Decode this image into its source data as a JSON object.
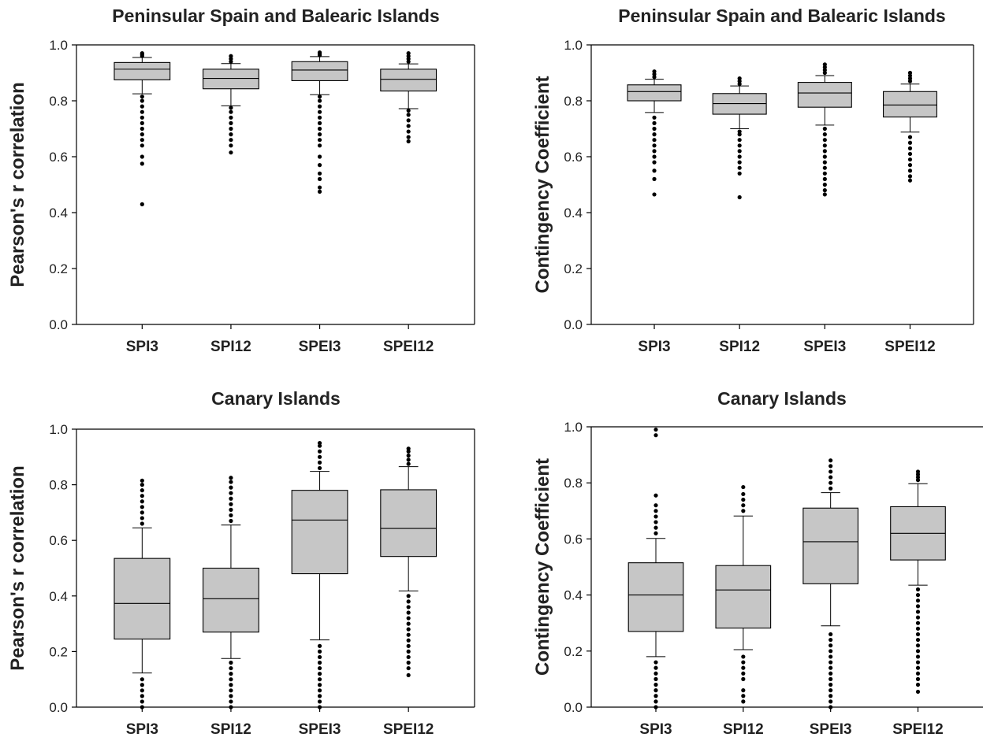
{
  "chart_data": [
    {
      "type": "box",
      "title": "Peninsular Spain and Balearic Islands",
      "ylabel": "Pearson's r correlation",
      "ylim": [
        0,
        1
      ],
      "yticks": [
        "0.0",
        "0.2",
        "0.4",
        "0.6",
        "0.8",
        "1.0"
      ],
      "categories": [
        "SPI3",
        "SPI12",
        "SPEI3",
        "SPEI12"
      ],
      "boxes": [
        {
          "whisker_low": 0.825,
          "q1": 0.875,
          "median": 0.913,
          "q3": 0.937,
          "whisker_high": 0.955,
          "outliers_low": [
            0.43,
            0.575,
            0.6,
            0.64,
            0.66,
            0.68,
            0.7,
            0.72,
            0.74,
            0.76,
            0.78,
            0.8,
            0.815
          ],
          "outliers_high": [
            0.96,
            0.965,
            0.97
          ]
        },
        {
          "whisker_low": 0.782,
          "q1": 0.843,
          "median": 0.88,
          "q3": 0.913,
          "whisker_high": 0.933,
          "outliers_low": [
            0.615,
            0.64,
            0.66,
            0.68,
            0.7,
            0.72,
            0.74,
            0.76,
            0.775
          ],
          "outliers_high": [
            0.94,
            0.95,
            0.96
          ]
        },
        {
          "whisker_low": 0.822,
          "q1": 0.872,
          "median": 0.91,
          "q3": 0.94,
          "whisker_high": 0.958,
          "outliers_low": [
            0.475,
            0.49,
            0.52,
            0.54,
            0.57,
            0.6,
            0.64,
            0.66,
            0.68,
            0.7,
            0.72,
            0.74,
            0.76,
            0.78,
            0.8,
            0.815
          ],
          "outliers_high": [
            0.963,
            0.968,
            0.973
          ]
        },
        {
          "whisker_low": 0.772,
          "q1": 0.835,
          "median": 0.877,
          "q3": 0.913,
          "whisker_high": 0.932,
          "outliers_low": [
            0.655,
            0.67,
            0.69,
            0.71,
            0.73,
            0.75,
            0.765
          ],
          "outliers_high": [
            0.94,
            0.95,
            0.96,
            0.97
          ]
        }
      ]
    },
    {
      "type": "box",
      "title": "Peninsular Spain and Balearic Islands",
      "ylabel": "Contingency Coefficient",
      "ylim": [
        0,
        1
      ],
      "yticks": [
        "0.0",
        "0.2",
        "0.4",
        "0.6",
        "0.8",
        "1.0"
      ],
      "categories": [
        "SPI3",
        "SPI12",
        "SPEI3",
        "SPEI12"
      ],
      "boxes": [
        {
          "whisker_low": 0.758,
          "q1": 0.8,
          "median": 0.833,
          "q3": 0.857,
          "whisker_high": 0.877,
          "outliers_low": [
            0.465,
            0.52,
            0.55,
            0.58,
            0.6,
            0.62,
            0.64,
            0.66,
            0.68,
            0.7,
            0.72,
            0.74
          ],
          "outliers_high": [
            0.885,
            0.895,
            0.905
          ]
        },
        {
          "whisker_low": 0.7,
          "q1": 0.752,
          "median": 0.79,
          "q3": 0.826,
          "whisker_high": 0.853,
          "outliers_low": [
            0.455,
            0.54,
            0.56,
            0.58,
            0.6,
            0.62,
            0.64,
            0.66,
            0.68,
            0.69
          ],
          "outliers_high": [
            0.86,
            0.87,
            0.88
          ]
        },
        {
          "whisker_low": 0.713,
          "q1": 0.777,
          "median": 0.828,
          "q3": 0.866,
          "whisker_high": 0.89,
          "outliers_low": [
            0.465,
            0.48,
            0.5,
            0.52,
            0.54,
            0.56,
            0.58,
            0.6,
            0.62,
            0.64,
            0.66,
            0.68,
            0.7
          ],
          "outliers_high": [
            0.9,
            0.91,
            0.92,
            0.93
          ]
        },
        {
          "whisker_low": 0.688,
          "q1": 0.742,
          "median": 0.785,
          "q3": 0.833,
          "whisker_high": 0.86,
          "outliers_low": [
            0.515,
            0.53,
            0.55,
            0.57,
            0.59,
            0.61,
            0.63,
            0.65,
            0.67
          ],
          "outliers_high": [
            0.87,
            0.88,
            0.89,
            0.9
          ]
        }
      ]
    },
    {
      "type": "box",
      "title": "Canary Islands",
      "ylabel": "Pearson's r correlation",
      "ylim": [
        0,
        1
      ],
      "yticks": [
        "0.0",
        "0.2",
        "0.4",
        "0.6",
        "0.8",
        "1.0"
      ],
      "categories": [
        "SPI3",
        "SPI12",
        "SPEI3",
        "SPEI12"
      ],
      "boxes": [
        {
          "whisker_low": 0.123,
          "q1": 0.245,
          "median": 0.373,
          "q3": 0.535,
          "whisker_high": 0.645,
          "outliers_low": [
            0.0,
            0.02,
            0.04,
            0.06,
            0.08,
            0.1
          ],
          "outliers_high": [
            0.66,
            0.68,
            0.7,
            0.72,
            0.74,
            0.76,
            0.78,
            0.8,
            0.815
          ]
        },
        {
          "whisker_low": 0.175,
          "q1": 0.27,
          "median": 0.39,
          "q3": 0.5,
          "whisker_high": 0.655,
          "outliers_low": [
            0.0,
            0.02,
            0.04,
            0.06,
            0.08,
            0.1,
            0.12,
            0.14,
            0.16
          ],
          "outliers_high": [
            0.67,
            0.69,
            0.71,
            0.73,
            0.75,
            0.77,
            0.79,
            0.81,
            0.825
          ]
        },
        {
          "whisker_low": 0.242,
          "q1": 0.48,
          "median": 0.673,
          "q3": 0.78,
          "whisker_high": 0.848,
          "outliers_low": [
            0.0,
            0.02,
            0.04,
            0.06,
            0.08,
            0.1,
            0.12,
            0.14,
            0.16,
            0.18,
            0.2,
            0.22
          ],
          "outliers_high": [
            0.86,
            0.88,
            0.9,
            0.92,
            0.94,
            0.95
          ]
        },
        {
          "whisker_low": 0.418,
          "q1": 0.542,
          "median": 0.643,
          "q3": 0.782,
          "whisker_high": 0.865,
          "outliers_low": [
            0.115,
            0.14,
            0.16,
            0.18,
            0.2,
            0.22,
            0.24,
            0.26,
            0.28,
            0.3,
            0.32,
            0.34,
            0.36,
            0.38,
            0.4
          ],
          "outliers_high": [
            0.875,
            0.89,
            0.905,
            0.92,
            0.93
          ]
        }
      ]
    },
    {
      "type": "box",
      "title": "Canary Islands",
      "ylabel": "Contingency Coefficient",
      "ylim": [
        0,
        1
      ],
      "yticks": [
        "0.0",
        "0.2",
        "0.4",
        "0.6",
        "0.8",
        "1.0"
      ],
      "categories": [
        "SPI3",
        "SPI12",
        "SPEI3",
        "SPEI12"
      ],
      "boxes": [
        {
          "whisker_low": 0.18,
          "q1": 0.27,
          "median": 0.4,
          "q3": 0.515,
          "whisker_high": 0.602,
          "outliers_low": [
            0.0,
            0.02,
            0.04,
            0.06,
            0.08,
            0.1,
            0.12,
            0.14,
            0.16
          ],
          "outliers_high": [
            0.62,
            0.64,
            0.66,
            0.68,
            0.7,
            0.72,
            0.755,
            0.97,
            0.99
          ]
        },
        {
          "whisker_low": 0.205,
          "q1": 0.282,
          "median": 0.418,
          "q3": 0.505,
          "whisker_high": 0.682,
          "outliers_low": [
            0.02,
            0.04,
            0.06,
            0.1,
            0.12,
            0.14,
            0.16,
            0.18
          ],
          "outliers_high": [
            0.7,
            0.72,
            0.74,
            0.76,
            0.785
          ]
        },
        {
          "whisker_low": 0.29,
          "q1": 0.44,
          "median": 0.59,
          "q3": 0.71,
          "whisker_high": 0.765,
          "outliers_low": [
            0.0,
            0.02,
            0.04,
            0.06,
            0.08,
            0.1,
            0.12,
            0.14,
            0.16,
            0.18,
            0.2,
            0.22,
            0.24,
            0.26
          ],
          "outliers_high": [
            0.78,
            0.8,
            0.82,
            0.84,
            0.86,
            0.88
          ]
        },
        {
          "whisker_low": 0.435,
          "q1": 0.525,
          "median": 0.62,
          "q3": 0.715,
          "whisker_high": 0.797,
          "outliers_low": [
            0.055,
            0.08,
            0.1,
            0.12,
            0.14,
            0.16,
            0.18,
            0.2,
            0.22,
            0.24,
            0.26,
            0.28,
            0.3,
            0.32,
            0.34,
            0.36,
            0.38,
            0.4,
            0.42
          ],
          "outliers_high": [
            0.81,
            0.82,
            0.83,
            0.84
          ]
        }
      ]
    }
  ]
}
